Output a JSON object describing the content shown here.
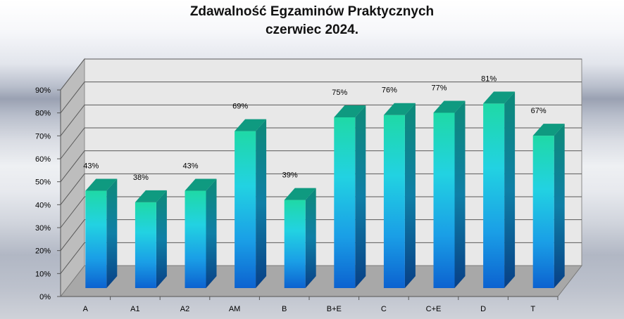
{
  "chart_data": {
    "type": "bar",
    "title": "Zdawalność Egzaminów Praktycznych",
    "subtitle": "czerwiec 2024.",
    "categories": [
      "A",
      "A1",
      "A2",
      "AM",
      "B",
      "B+E",
      "C",
      "C+E",
      "D",
      "T"
    ],
    "values": [
      43,
      38,
      43,
      69,
      39,
      75,
      76,
      77,
      81,
      67
    ],
    "value_labels": [
      "43%",
      "38%",
      "43%",
      "69%",
      "39%",
      "75%",
      "76%",
      "77%",
      "81%",
      "67%"
    ],
    "y_ticks": [
      "0%",
      "10%",
      "20%",
      "30%",
      "40%",
      "50%",
      "60%",
      "70%",
      "80%",
      "90%"
    ],
    "ylim": [
      0,
      90
    ],
    "xlabel": "",
    "ylabel": "",
    "grid": true,
    "legend": "none",
    "colors": {
      "bar_top": "#1fd6a8",
      "bar_mid": "#22cfe0",
      "bar_bottom": "#1070d8",
      "bar_side": "#0d5f8a",
      "bar_cap": "#0f9a80",
      "wall": "#e8e8e8",
      "floor": "#a8a8a8",
      "gridline": "#595959"
    }
  }
}
